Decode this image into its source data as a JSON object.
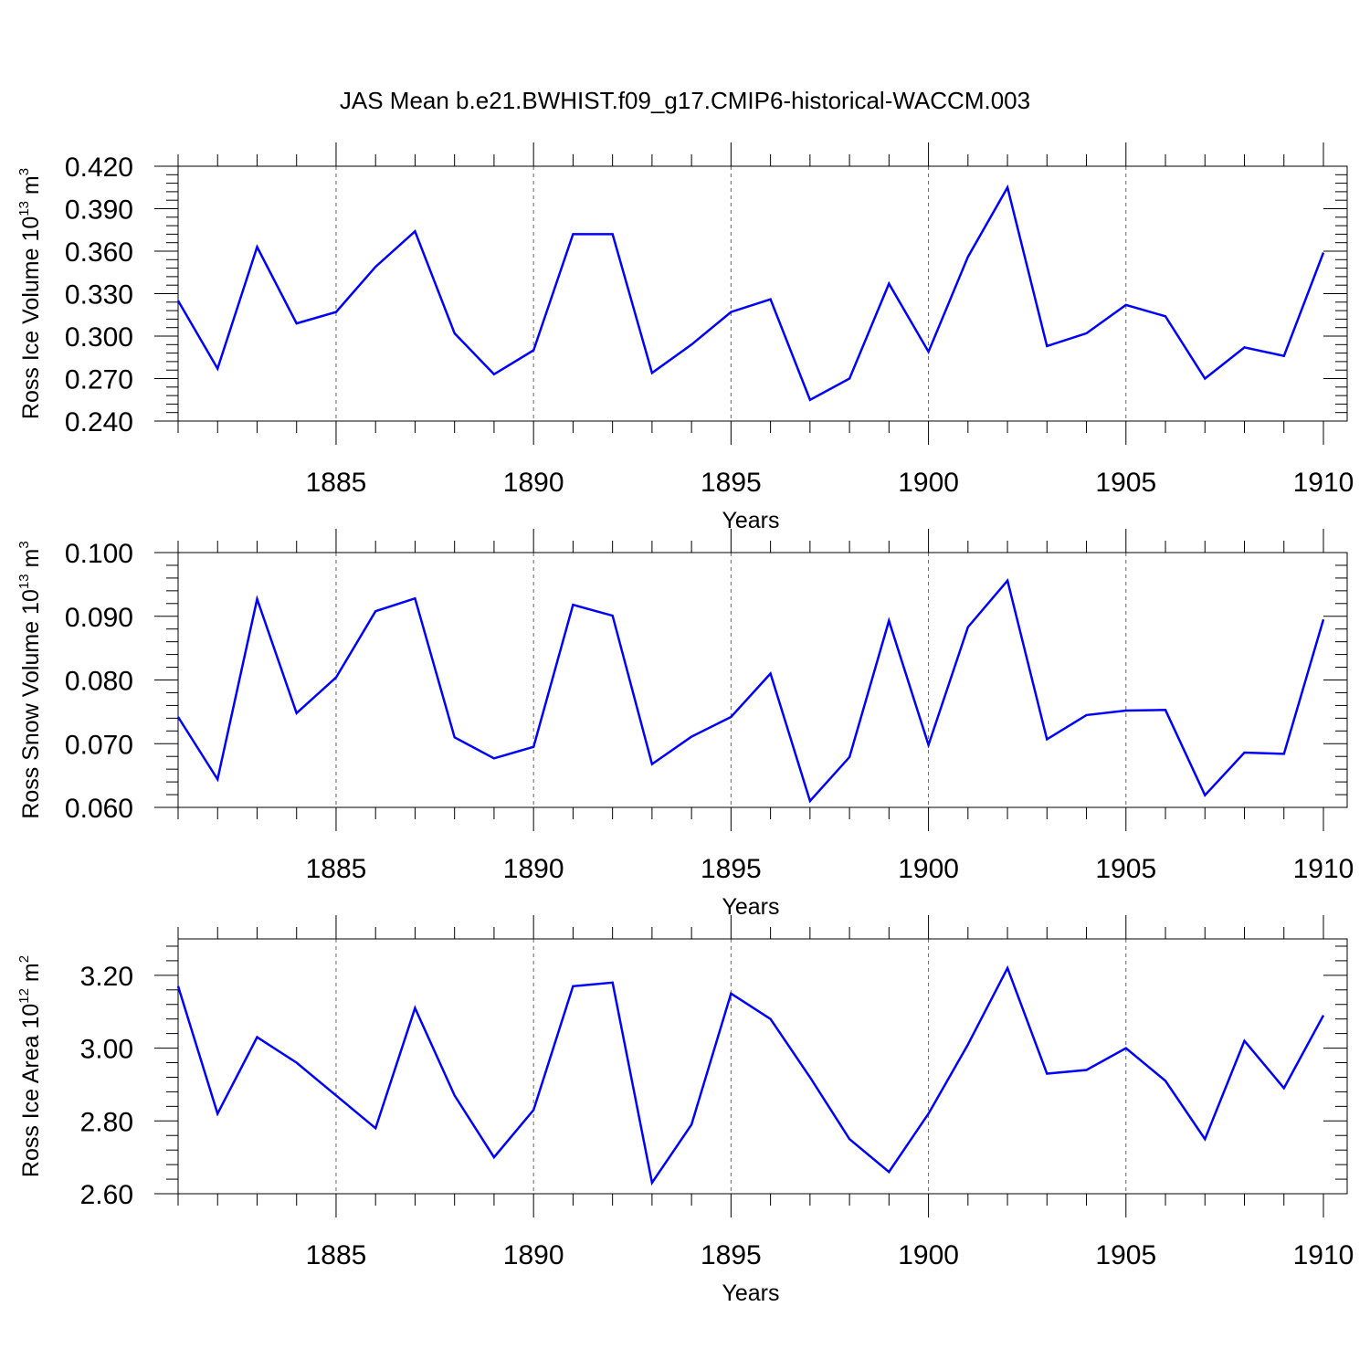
{
  "figure": {
    "title": "JAS Mean b.e21.BWHIST.f09_g17.CMIP6-historical-WACCM.003"
  },
  "chart_data": [
    {
      "type": "line",
      "ylabel": {
        "main": "Ross Ice Volume 10",
        "exp": "13",
        "unit": " m",
        "unit_exp": "3"
      },
      "xlabel": "Years",
      "xlim": [
        1881,
        1910
      ],
      "ylim": [
        0.24,
        0.42
      ],
      "yticks": [
        0.24,
        0.27,
        0.3,
        0.33,
        0.36,
        0.39,
        0.42
      ],
      "yticklabels": [
        "0.240",
        "0.270",
        "0.300",
        "0.330",
        "0.360",
        "0.390",
        "0.420"
      ],
      "xticks": [
        1885,
        1890,
        1895,
        1900,
        1905,
        1910
      ],
      "xticklabels": [
        "1885",
        "1890",
        "1895",
        "1900",
        "1905",
        "1910"
      ],
      "grid": "vertical dashed at labeled years",
      "color": "#0000ff",
      "x": [
        1881,
        1882,
        1883,
        1884,
        1885,
        1886,
        1887,
        1888,
        1889,
        1890,
        1891,
        1892,
        1893,
        1894,
        1895,
        1896,
        1897,
        1898,
        1899,
        1900,
        1901,
        1902,
        1903,
        1904,
        1905,
        1906,
        1907,
        1908,
        1909,
        1910
      ],
      "values": [
        0.325,
        0.277,
        0.363,
        0.309,
        0.317,
        0.349,
        0.374,
        0.302,
        0.273,
        0.29,
        0.372,
        0.372,
        0.274,
        0.294,
        0.317,
        0.326,
        0.255,
        0.27,
        0.337,
        0.289,
        0.356,
        0.405,
        0.293,
        0.302,
        0.322,
        0.314,
        0.27,
        0.292,
        0.286,
        0.359
      ]
    },
    {
      "type": "line",
      "ylabel": {
        "main": "Ross Snow Volume 10",
        "exp": "13",
        "unit": " m",
        "unit_exp": "3"
      },
      "xlabel": "Years",
      "xlim": [
        1881,
        1910
      ],
      "ylim": [
        0.06,
        0.1
      ],
      "yticks": [
        0.06,
        0.07,
        0.08,
        0.09,
        0.1
      ],
      "yticklabels": [
        "0.060",
        "0.070",
        "0.080",
        "0.090",
        "0.100"
      ],
      "xticks": [
        1885,
        1890,
        1895,
        1900,
        1905,
        1910
      ],
      "xticklabels": [
        "1885",
        "1890",
        "1895",
        "1900",
        "1905",
        "1910"
      ],
      "grid": "vertical dashed at labeled years",
      "color": "#0000ff",
      "x": [
        1881,
        1882,
        1883,
        1884,
        1885,
        1886,
        1887,
        1888,
        1889,
        1890,
        1891,
        1892,
        1893,
        1894,
        1895,
        1896,
        1897,
        1898,
        1899,
        1900,
        1901,
        1902,
        1903,
        1904,
        1905,
        1906,
        1907,
        1908,
        1909,
        1910
      ],
      "values": [
        0.0742,
        0.0644,
        0.0927,
        0.0748,
        0.0804,
        0.0908,
        0.0928,
        0.071,
        0.0677,
        0.0695,
        0.0918,
        0.0901,
        0.0668,
        0.0711,
        0.0742,
        0.081,
        0.061,
        0.0679,
        0.0893,
        0.0698,
        0.0883,
        0.0956,
        0.0707,
        0.0745,
        0.0752,
        0.0753,
        0.0619,
        0.0686,
        0.0684,
        0.0895
      ]
    },
    {
      "type": "line",
      "ylabel": {
        "main": "Ross Ice Area 10",
        "exp": "12",
        "unit": " m",
        "unit_exp": "2"
      },
      "xlabel": "Years",
      "xlim": [
        1881,
        1910
      ],
      "ylim": [
        2.6,
        3.3
      ],
      "yticks": [
        2.6,
        2.8,
        3.0,
        3.2
      ],
      "yticklabels": [
        "2.60",
        "2.80",
        "3.00",
        "3.20"
      ],
      "xticks": [
        1885,
        1890,
        1895,
        1900,
        1905,
        1910
      ],
      "xticklabels": [
        "1885",
        "1890",
        "1895",
        "1900",
        "1905",
        "1910"
      ],
      "grid": "vertical dashed at labeled years",
      "color": "#0000ff",
      "x": [
        1881,
        1882,
        1883,
        1884,
        1885,
        1886,
        1887,
        1888,
        1889,
        1890,
        1891,
        1892,
        1893,
        1894,
        1895,
        1896,
        1897,
        1898,
        1899,
        1900,
        1901,
        1902,
        1903,
        1904,
        1905,
        1906,
        1907,
        1908,
        1909,
        1910
      ],
      "values": [
        3.17,
        2.82,
        3.03,
        2.96,
        2.87,
        2.78,
        3.11,
        2.87,
        2.7,
        2.83,
        3.17,
        3.18,
        2.63,
        2.79,
        3.15,
        3.08,
        2.92,
        2.75,
        2.66,
        2.82,
        3.01,
        3.22,
        2.93,
        2.94,
        3.0,
        2.91,
        2.75,
        3.02,
        2.89,
        3.09
      ]
    }
  ]
}
